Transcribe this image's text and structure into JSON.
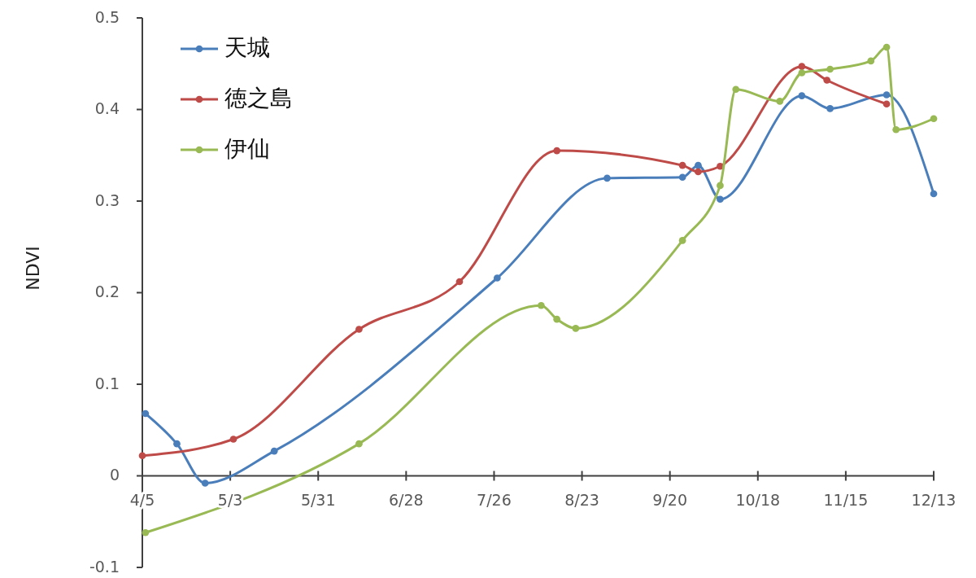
{
  "chart_data": {
    "type": "line",
    "ylabel": "NDVI",
    "legend": "top left",
    "marker": "circle",
    "line_style": "solid",
    "grid": false,
    "xlim": [
      "--04-05",
      "--12-13"
    ],
    "xticks": [
      {
        "value": "--04-05",
        "label": "4/5"
      },
      {
        "value": "--05-03",
        "label": "5/3"
      },
      {
        "value": "--05-31",
        "label": "5/31"
      },
      {
        "value": "--06-28",
        "label": "6/28"
      },
      {
        "value": "--07-26",
        "label": "7/26"
      },
      {
        "value": "--08-23",
        "label": "8/23"
      },
      {
        "value": "--09-20",
        "label": "9/20"
      },
      {
        "value": "--10-18",
        "label": "10/18"
      },
      {
        "value": "--11-15",
        "label": "11/15"
      },
      {
        "value": "--12-13",
        "label": "12/13"
      }
    ],
    "ylim": [
      -0.1,
      0.5
    ],
    "yticks": [
      -0.1,
      0,
      0.1,
      0.2,
      0.3,
      0.4,
      0.5
    ],
    "series": [
      {
        "name": "天城",
        "color": "#4a7ebb",
        "x": [
          "--04-06",
          "--04-16",
          "--04-25",
          "--05-17",
          "--07-27",
          "--08-31",
          "--09-24",
          "--09-29",
          "--10-06",
          "--11-01",
          "--11-10",
          "--11-28",
          "--12-13"
        ],
        "values": [
          0.068,
          0.035,
          -0.008,
          0.027,
          0.216,
          0.325,
          0.326,
          0.339,
          0.302,
          0.415,
          0.401,
          0.416,
          0.308
        ]
      },
      {
        "name": "徳之島",
        "color": "#be4b48",
        "x": [
          "--04-05",
          "--05-04",
          "--06-13",
          "--07-15",
          "--08-15",
          "--09-24",
          "--09-29",
          "--10-06",
          "--11-01",
          "--11-09",
          "--11-28"
        ],
        "values": [
          0.022,
          0.04,
          0.16,
          0.212,
          0.355,
          0.339,
          0.332,
          0.338,
          0.447,
          0.432,
          0.406
        ]
      },
      {
        "name": "伊仙",
        "color": "#98b954",
        "x": [
          "--04-06",
          "--06-13",
          "--08-10",
          "--08-15",
          "--08-21",
          "--09-24",
          "--10-06",
          "--10-11",
          "--10-25",
          "--11-01",
          "--11-10",
          "--11-23",
          "--11-28",
          "--12-01",
          "--12-13"
        ],
        "values": [
          -0.062,
          0.035,
          0.186,
          0.171,
          0.161,
          0.257,
          0.317,
          0.422,
          0.409,
          0.44,
          0.444,
          0.453,
          0.468,
          0.378,
          0.39
        ]
      }
    ]
  }
}
